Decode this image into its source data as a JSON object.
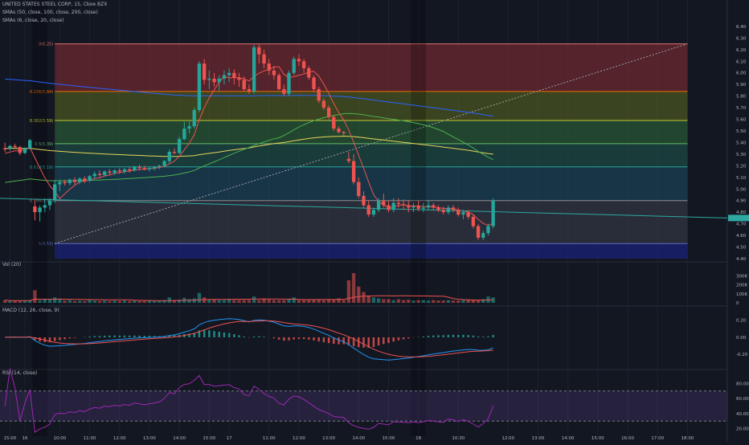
{
  "header": {
    "symbol_line": "UNITED STATES STEEL CORP, 15, Cboe BZX",
    "sma_line_1": "SMAs (50, close, 100, close, 200, close)",
    "sma_line_2": "SMAs (6, close, 20, close)"
  },
  "panes": {
    "volume_label": "Vol (20)",
    "macd_label": "MACD (12, 26, close, 9)",
    "rsi_label": "RSI (14, close)"
  },
  "colors": {
    "bg": "#131722",
    "up": "#26a69a",
    "down": "#ef5350",
    "sma6": "#ef5350",
    "sma20": "#4caf50",
    "sma50": "#2962ff",
    "sma100": "#e6d55a",
    "sma200": "#26a69a",
    "macd": "#2196f3",
    "signal": "#ef5350",
    "rsi": "#9c27b0",
    "trend": "#2ea8a0",
    "grid": "#1e222d",
    "axis_text": "#b2b5be"
  },
  "chart_data": [
    {
      "type": "candlestick",
      "title": "UNITED STATES STEEL CORP, 15, Cboe BZX",
      "y_axis_ticks": [
        "6.40",
        "6.30",
        "6.20",
        "6.10",
        "6.00",
        "5.90",
        "5.80",
        "5.70",
        "5.60",
        "5.50",
        "5.40",
        "5.30",
        "5.20",
        "5.10",
        "5.00",
        "4.90",
        "4.80",
        "4.70",
        "4.60",
        "4.50",
        "4.40"
      ],
      "ylim": [
        4.4,
        6.42
      ],
      "x_tick_labels": [
        "15:00",
        "16",
        "10:00",
        "11:00",
        "12:00",
        "13:00",
        "14:00",
        "15:00",
        "17",
        "11:00",
        "12:00",
        "13:00",
        "14:00",
        "15:00",
        "18",
        "10:30",
        "12:00",
        "13:00",
        "14:00",
        "15:00",
        "16:00",
        "17:00",
        "18:00"
      ],
      "x_tick_index": [
        1,
        4,
        11,
        17,
        23,
        29,
        35,
        41,
        45,
        53,
        59,
        65,
        71,
        77,
        83,
        91,
        101,
        107,
        113,
        119,
        125,
        131,
        137
      ],
      "x_range": [
        -1,
        145
      ],
      "current_price": "4.75",
      "fibonacci": [
        {
          "label": "0(6.25)",
          "price": 6.25
        },
        {
          "label": "0.236(5.84)",
          "price": 5.84
        },
        {
          "label": "0.382(5.59)",
          "price": 5.59
        },
        {
          "label": "0.5(5.39)",
          "price": 5.39
        },
        {
          "label": "0.618(5.19)",
          "price": 5.19
        },
        {
          "label": "0.786(4.90)",
          "price": 4.9
        },
        {
          "label": "1(4.53)",
          "price": 4.53
        }
      ],
      "ohlc": [
        [
          5.35,
          5.4,
          5.32,
          5.34
        ],
        [
          5.35,
          5.38,
          5.33,
          5.37
        ],
        [
          5.37,
          5.39,
          5.35,
          5.36
        ],
        [
          5.36,
          5.37,
          5.29,
          5.31
        ],
        [
          5.31,
          5.36,
          5.3,
          5.35
        ],
        [
          5.35,
          5.43,
          5.34,
          5.42
        ],
        [
          4.85,
          4.91,
          4.73,
          4.8
        ],
        [
          4.8,
          4.86,
          4.72,
          4.84
        ],
        [
          4.84,
          4.92,
          4.8,
          4.86
        ],
        [
          4.86,
          4.92,
          4.82,
          4.9
        ],
        [
          4.9,
          5.08,
          4.88,
          5.04
        ],
        [
          5.04,
          5.08,
          4.98,
          5.06
        ],
        [
          5.06,
          5.08,
          5.03,
          5.05
        ],
        [
          5.05,
          5.09,
          5.03,
          5.08
        ],
        [
          5.08,
          5.1,
          5.04,
          5.06
        ],
        [
          5.06,
          5.1,
          5.04,
          5.09
        ],
        [
          5.09,
          5.11,
          5.05,
          5.07
        ],
        [
          5.07,
          5.12,
          5.06,
          5.11
        ],
        [
          5.11,
          5.15,
          5.09,
          5.13
        ],
        [
          5.13,
          5.16,
          5.1,
          5.12
        ],
        [
          5.12,
          5.16,
          5.11,
          5.15
        ],
        [
          5.15,
          5.17,
          5.12,
          5.14
        ],
        [
          5.14,
          5.17,
          5.12,
          5.16
        ],
        [
          5.16,
          5.18,
          5.13,
          5.15
        ],
        [
          5.15,
          5.18,
          5.13,
          5.17
        ],
        [
          5.17,
          5.19,
          5.14,
          5.16
        ],
        [
          5.16,
          5.2,
          5.15,
          5.19
        ],
        [
          5.19,
          5.21,
          5.16,
          5.18
        ],
        [
          5.18,
          5.2,
          5.16,
          5.17
        ],
        [
          5.17,
          5.19,
          5.15,
          5.18
        ],
        [
          5.18,
          5.2,
          5.16,
          5.19
        ],
        [
          5.19,
          5.21,
          5.17,
          5.2
        ],
        [
          5.2,
          5.25,
          5.19,
          5.24
        ],
        [
          5.24,
          5.34,
          5.22,
          5.32
        ],
        [
          5.32,
          5.35,
          5.3,
          5.31
        ],
        [
          5.31,
          5.45,
          5.3,
          5.43
        ],
        [
          5.43,
          5.58,
          5.42,
          5.52
        ],
        [
          5.52,
          5.58,
          5.48,
          5.54
        ],
        [
          5.54,
          5.7,
          5.52,
          5.68
        ],
        [
          5.68,
          6.1,
          5.66,
          6.08
        ],
        [
          6.08,
          6.12,
          5.9,
          5.94
        ],
        [
          5.94,
          6.02,
          5.86,
          5.95
        ],
        [
          5.95,
          6.0,
          5.88,
          5.92
        ],
        [
          5.92,
          5.98,
          5.84,
          5.95
        ],
        [
          5.95,
          6.02,
          5.9,
          5.98
        ],
        [
          5.98,
          6.04,
          5.92,
          6.0
        ],
        [
          6.0,
          6.03,
          5.9,
          5.96
        ],
        [
          5.96,
          6.0,
          5.88,
          5.94
        ],
        [
          5.94,
          5.97,
          5.84,
          5.86
        ],
        [
          5.86,
          5.9,
          5.82,
          5.84
        ],
        [
          5.84,
          6.24,
          5.82,
          6.22
        ],
        [
          6.22,
          6.25,
          6.08,
          6.16
        ],
        [
          6.16,
          6.2,
          6.04,
          6.08
        ],
        [
          6.08,
          6.12,
          5.98,
          6.02
        ],
        [
          6.02,
          6.06,
          5.94,
          5.98
        ],
        [
          5.98,
          6.0,
          5.85,
          5.86
        ],
        [
          5.86,
          5.9,
          5.8,
          5.82
        ],
        [
          5.82,
          6.02,
          5.8,
          6.0
        ],
        [
          6.0,
          6.14,
          5.98,
          6.12
        ],
        [
          6.12,
          6.16,
          6.06,
          6.1
        ],
        [
          6.1,
          6.12,
          6.0,
          6.04
        ],
        [
          6.04,
          6.06,
          5.94,
          5.96
        ],
        [
          5.96,
          5.98,
          5.84,
          5.86
        ],
        [
          5.86,
          5.88,
          5.74,
          5.76
        ],
        [
          5.76,
          5.78,
          5.68,
          5.7
        ],
        [
          5.7,
          5.72,
          5.6,
          5.62
        ],
        [
          5.62,
          5.64,
          5.5,
          5.52
        ],
        [
          5.52,
          5.54,
          5.48,
          5.49
        ],
        [
          5.49,
          5.5,
          5.46,
          5.48
        ],
        [
          5.26,
          5.32,
          5.22,
          5.24
        ],
        [
          5.24,
          5.3,
          5.04,
          5.06
        ],
        [
          5.06,
          5.1,
          4.92,
          4.94
        ],
        [
          4.94,
          4.98,
          4.84,
          4.86
        ],
        [
          4.86,
          4.9,
          4.76,
          4.78
        ],
        [
          4.78,
          4.84,
          4.76,
          4.82
        ],
        [
          4.82,
          4.92,
          4.8,
          4.9
        ],
        [
          4.9,
          4.96,
          4.84,
          4.86
        ],
        [
          4.86,
          4.9,
          4.8,
          4.82
        ],
        [
          4.82,
          4.92,
          4.8,
          4.88
        ],
        [
          4.88,
          4.92,
          4.84,
          4.87
        ],
        [
          4.87,
          4.91,
          4.82,
          4.86
        ],
        [
          4.86,
          4.9,
          4.8,
          4.84
        ],
        [
          4.84,
          4.88,
          4.8,
          4.85
        ],
        [
          4.85,
          4.9,
          4.81,
          4.83
        ],
        [
          4.83,
          4.88,
          4.8,
          4.84
        ],
        [
          4.84,
          4.9,
          4.82,
          4.86
        ],
        [
          4.86,
          4.88,
          4.82,
          4.84
        ],
        [
          4.84,
          4.86,
          4.8,
          4.82
        ],
        [
          4.82,
          4.85,
          4.78,
          4.8
        ],
        [
          4.8,
          4.86,
          4.78,
          4.84
        ],
        [
          4.84,
          4.86,
          4.8,
          4.82
        ],
        [
          4.82,
          4.84,
          4.76,
          4.78
        ],
        [
          4.78,
          4.82,
          4.74,
          4.8
        ],
        [
          4.8,
          4.82,
          4.74,
          4.76
        ],
        [
          4.76,
          4.78,
          4.66,
          4.68
        ],
        [
          4.68,
          4.7,
          4.56,
          4.58
        ],
        [
          4.58,
          4.64,
          4.56,
          4.62
        ],
        [
          4.62,
          4.7,
          4.6,
          4.68
        ],
        [
          4.68,
          4.92,
          4.66,
          4.9
        ]
      ]
    },
    {
      "type": "bar",
      "title": "Vol (20)",
      "y_axis_ticks": [
        "300K",
        "200K",
        "100K",
        "0"
      ],
      "ylim": [
        0,
        330000
      ],
      "values": [
        30000,
        20000,
        25000,
        20000,
        25000,
        30000,
        140000,
        30000,
        40000,
        35000,
        60000,
        40000,
        25000,
        30000,
        20000,
        25000,
        20000,
        30000,
        25000,
        20000,
        25000,
        20000,
        25000,
        20000,
        25000,
        20000,
        25000,
        20000,
        20000,
        25000,
        20000,
        25000,
        30000,
        60000,
        30000,
        35000,
        55000,
        40000,
        50000,
        110000,
        60000,
        40000,
        35000,
        30000,
        30000,
        40000,
        30000,
        30000,
        30000,
        30000,
        70000,
        30000,
        40000,
        35000,
        30000,
        30000,
        30000,
        40000,
        60000,
        30000,
        30000,
        30000,
        40000,
        40000,
        30000,
        40000,
        40000,
        50000,
        30000,
        250000,
        330000,
        180000,
        120000,
        80000,
        60000,
        50000,
        40000,
        40000,
        30000,
        40000,
        30000,
        35000,
        25000,
        30000,
        30000,
        25000,
        30000,
        25000,
        25000,
        30000,
        25000,
        25000,
        30000,
        35000,
        30000,
        30000,
        40000,
        70000,
        60000
      ]
    },
    {
      "type": "line",
      "title": "MACD (12, 26, close, 9)",
      "y_axis_ticks": [
        "0.20",
        "0.00",
        "-0.20"
      ],
      "ylim": [
        -0.33,
        0.31
      ]
    },
    {
      "type": "line",
      "title": "RSI (14, close)",
      "y_axis_ticks": [
        "80.00",
        "60.00",
        "40.00",
        "20.00"
      ],
      "ylim": [
        10,
        90
      ],
      "bands": [
        70,
        30
      ]
    }
  ]
}
